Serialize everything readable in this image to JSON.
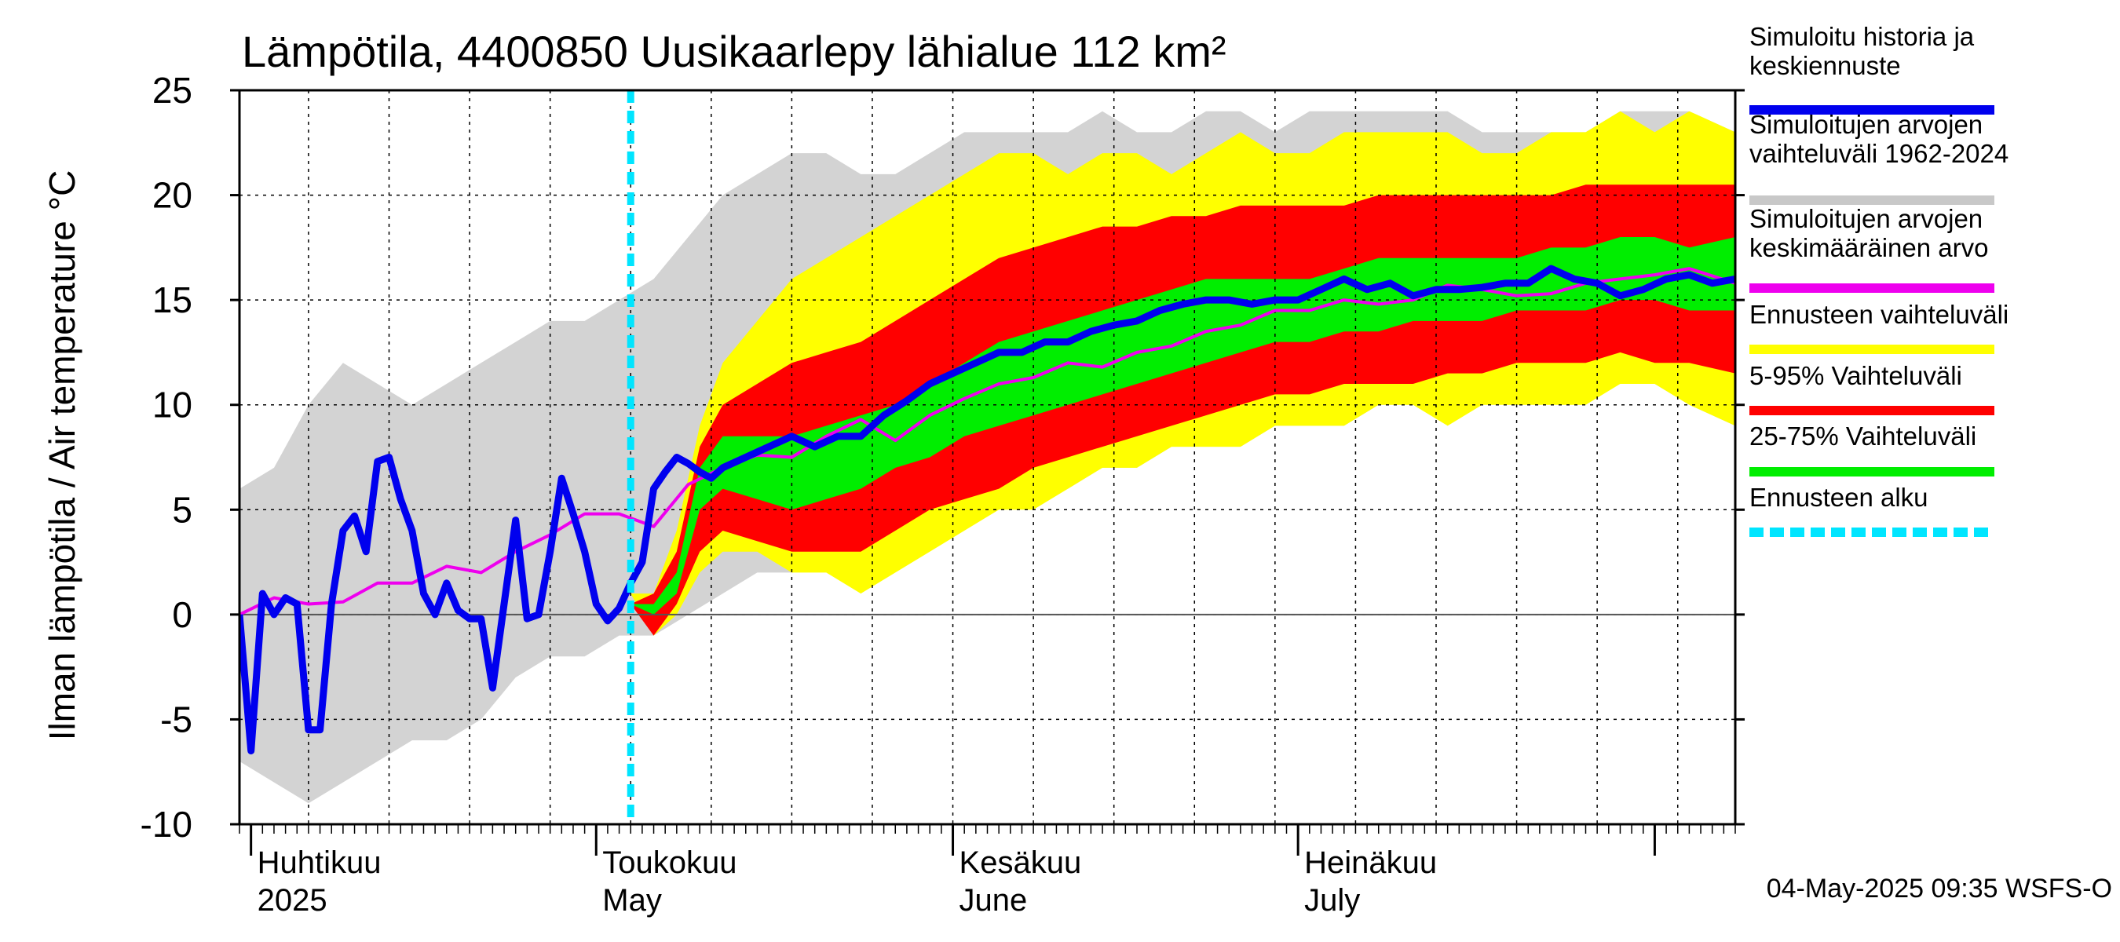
{
  "chart_data": {
    "type": "area",
    "title": "Lämpötila, 4400850 Uusikaarlepy lähialue 112 km²",
    "ylabel": "Ilman lämpötila / Air temperature   °C",
    "ylim": [
      -10,
      25
    ],
    "yticks": [
      -10,
      -5,
      0,
      5,
      10,
      15,
      20,
      25
    ],
    "x_start": "2025-03-31",
    "x_end": "2025-08-08",
    "forecast_start": "2025-05-04",
    "month_labels": [
      {
        "date": "2025-04-01",
        "line1": "Huhtikuu",
        "line2": "2025"
      },
      {
        "date": "2025-05-01",
        "line1": "Toukokuu",
        "line2": "May"
      },
      {
        "date": "2025-06-01",
        "line1": "Kesäkuu",
        "line2": "June"
      },
      {
        "date": "2025-07-01",
        "line1": "Heinäkuu",
        "line2": "July"
      }
    ],
    "footer": "04-May-2025 09:35 WSFS-O",
    "legend": [
      {
        "label": "Simuloitu historia ja\nkeskiennuste",
        "color": "#0000ee",
        "style": "solid"
      },
      {
        "label": "Simuloitujen arvojen\nvaihteluväli 1962-2024",
        "color": "#c8c8c8",
        "style": "solid"
      },
      {
        "label": "Simuloitujen arvojen\nkeskimääräinen arvo",
        "color": "#ee00ee",
        "style": "solid"
      },
      {
        "label": "Ennusteen vaihteluväli",
        "color": "#ffff00",
        "style": "solid"
      },
      {
        "label": "5-95% Vaihteluväli",
        "color": "#ff0000",
        "style": "solid"
      },
      {
        "label": "25-75% Vaihteluväli",
        "color": "#00ee00",
        "style": "solid"
      },
      {
        "label": "Ennusteen alku",
        "color": "#00e5ff",
        "style": "dashed"
      }
    ],
    "series": [
      {
        "name": "Simuloitujen arvojen vaihteluväli 1962-2024",
        "kind": "band",
        "color": "#d3d3d3",
        "x": [
          "2025-03-31",
          "2025-04-03",
          "2025-04-06",
          "2025-04-09",
          "2025-04-12",
          "2025-04-15",
          "2025-04-18",
          "2025-04-21",
          "2025-04-24",
          "2025-04-27",
          "2025-04-30",
          "2025-05-03",
          "2025-05-06",
          "2025-05-09",
          "2025-05-12",
          "2025-05-15",
          "2025-05-18",
          "2025-05-21",
          "2025-05-24",
          "2025-05-27",
          "2025-05-30",
          "2025-06-02",
          "2025-06-05",
          "2025-06-08",
          "2025-06-11",
          "2025-06-14",
          "2025-06-17",
          "2025-06-20",
          "2025-06-23",
          "2025-06-26",
          "2025-06-29",
          "2025-07-02",
          "2025-07-05",
          "2025-07-08",
          "2025-07-11",
          "2025-07-14",
          "2025-07-17",
          "2025-07-20",
          "2025-07-23",
          "2025-07-26",
          "2025-07-29",
          "2025-08-01",
          "2025-08-04",
          "2025-08-08"
        ],
        "low": [
          -7,
          -8,
          -9,
          -8,
          -7,
          -6,
          -6,
          -5,
          -3,
          -2,
          -2,
          -1,
          -1,
          0,
          1,
          2,
          2,
          3,
          3,
          4,
          4,
          5,
          5,
          6,
          6,
          7,
          7,
          8,
          8,
          8,
          9,
          9,
          9,
          10,
          10,
          10,
          10,
          11,
          11,
          11,
          11,
          11,
          10,
          9
        ],
        "high": [
          6,
          7,
          10,
          12,
          11,
          10,
          11,
          12,
          13,
          14,
          14,
          15,
          16,
          18,
          20,
          21,
          22,
          22,
          21,
          21,
          22,
          23,
          23,
          23,
          23,
          24,
          23,
          23,
          24,
          24,
          23,
          24,
          24,
          24,
          24,
          24,
          23,
          23,
          23,
          23,
          24,
          24,
          24,
          23
        ]
      },
      {
        "name": "Ennusteen vaihteluväli",
        "kind": "band",
        "color": "#ffff00",
        "x": [
          "2025-05-04",
          "2025-05-06",
          "2025-05-08",
          "2025-05-10",
          "2025-05-12",
          "2025-05-15",
          "2025-05-18",
          "2025-05-21",
          "2025-05-24",
          "2025-05-27",
          "2025-05-30",
          "2025-06-02",
          "2025-06-05",
          "2025-06-08",
          "2025-06-11",
          "2025-06-14",
          "2025-06-17",
          "2025-06-20",
          "2025-06-23",
          "2025-06-26",
          "2025-06-29",
          "2025-07-02",
          "2025-07-05",
          "2025-07-08",
          "2025-07-11",
          "2025-07-14",
          "2025-07-17",
          "2025-07-20",
          "2025-07-23",
          "2025-07-26",
          "2025-07-29",
          "2025-08-01",
          "2025-08-04",
          "2025-08-08"
        ],
        "low": [
          1,
          -1,
          0,
          2,
          3,
          3,
          2,
          2,
          1,
          2,
          3,
          4,
          5,
          5,
          6,
          7,
          7,
          8,
          8,
          8,
          9,
          9,
          9,
          10,
          10,
          9,
          10,
          10,
          10,
          10,
          11,
          11,
          10,
          9
        ],
        "high": [
          1,
          1,
          4,
          9,
          12,
          14,
          16,
          17,
          18,
          19,
          20,
          21,
          22,
          22,
          21,
          22,
          22,
          21,
          22,
          23,
          22,
          22,
          23,
          23,
          23,
          23,
          22,
          22,
          23,
          23,
          24,
          23,
          24,
          23
        ]
      },
      {
        "name": "5-95% Vaihteluväli",
        "kind": "band",
        "color": "#ff0000",
        "x": [
          "2025-05-04",
          "2025-05-06",
          "2025-05-08",
          "2025-05-10",
          "2025-05-12",
          "2025-05-15",
          "2025-05-18",
          "2025-05-21",
          "2025-05-24",
          "2025-05-27",
          "2025-05-30",
          "2025-06-02",
          "2025-06-05",
          "2025-06-08",
          "2025-06-11",
          "2025-06-14",
          "2025-06-17",
          "2025-06-20",
          "2025-06-23",
          "2025-06-26",
          "2025-06-29",
          "2025-07-02",
          "2025-07-05",
          "2025-07-08",
          "2025-07-11",
          "2025-07-14",
          "2025-07-17",
          "2025-07-20",
          "2025-07-23",
          "2025-07-26",
          "2025-07-29",
          "2025-08-01",
          "2025-08-04",
          "2025-08-08"
        ],
        "low": [
          0.5,
          -1,
          0.5,
          3,
          4,
          3.5,
          3,
          3,
          3,
          4,
          5,
          5.5,
          6,
          7,
          7.5,
          8,
          8.5,
          9,
          9.5,
          10,
          10.5,
          10.5,
          11,
          11,
          11,
          11.5,
          11.5,
          12,
          12,
          12,
          12.5,
          12,
          12,
          11.5
        ],
        "high": [
          0.5,
          1,
          3,
          8,
          10,
          11,
          12,
          12.5,
          13,
          14,
          15,
          16,
          17,
          17.5,
          18,
          18.5,
          18.5,
          19,
          19,
          19.5,
          19.5,
          19.5,
          19.5,
          20,
          20,
          20,
          20,
          20,
          20,
          20.5,
          20.5,
          20.5,
          20.5,
          20.5
        ]
      },
      {
        "name": "25-75% Vaihteluväli",
        "kind": "band",
        "color": "#00ee00",
        "x": [
          "2025-05-04",
          "2025-05-06",
          "2025-05-08",
          "2025-05-10",
          "2025-05-12",
          "2025-05-15",
          "2025-05-18",
          "2025-05-21",
          "2025-05-24",
          "2025-05-27",
          "2025-05-30",
          "2025-06-02",
          "2025-06-05",
          "2025-06-08",
          "2025-06-11",
          "2025-06-14",
          "2025-06-17",
          "2025-06-20",
          "2025-06-23",
          "2025-06-26",
          "2025-06-29",
          "2025-07-02",
          "2025-07-05",
          "2025-07-08",
          "2025-07-11",
          "2025-07-14",
          "2025-07-17",
          "2025-07-20",
          "2025-07-23",
          "2025-07-26",
          "2025-07-29",
          "2025-08-01",
          "2025-08-04",
          "2025-08-08"
        ],
        "low": [
          0.5,
          0,
          1,
          5,
          6,
          5.5,
          5,
          5.5,
          6,
          7,
          7.5,
          8.5,
          9,
          9.5,
          10,
          10.5,
          11,
          11.5,
          12,
          12.5,
          13,
          13,
          13.5,
          13.5,
          14,
          14,
          14,
          14.5,
          14.5,
          14.5,
          15,
          15,
          14.5,
          14.5
        ],
        "high": [
          0.5,
          0.5,
          2,
          7,
          8.5,
          8.5,
          8.5,
          9,
          9.5,
          10,
          11,
          12,
          13,
          13.5,
          14,
          14.5,
          15,
          15.5,
          16,
          16,
          16,
          16,
          16.5,
          17,
          17,
          17,
          17,
          17,
          17.5,
          17.5,
          18,
          18,
          17.5,
          18
        ]
      },
      {
        "name": "Simuloitujen arvojen keskimääräinen arvo",
        "kind": "line",
        "color": "#ee00ee",
        "x": [
          "2025-03-31",
          "2025-04-03",
          "2025-04-06",
          "2025-04-09",
          "2025-04-12",
          "2025-04-15",
          "2025-04-18",
          "2025-04-21",
          "2025-04-24",
          "2025-04-27",
          "2025-04-30",
          "2025-05-03",
          "2025-05-06",
          "2025-05-09",
          "2025-05-12",
          "2025-05-15",
          "2025-05-18",
          "2025-05-21",
          "2025-05-24",
          "2025-05-27",
          "2025-05-30",
          "2025-06-02",
          "2025-06-05",
          "2025-06-08",
          "2025-06-11",
          "2025-06-14",
          "2025-06-17",
          "2025-06-20",
          "2025-06-23",
          "2025-06-26",
          "2025-06-29",
          "2025-07-02",
          "2025-07-05",
          "2025-07-08",
          "2025-07-11",
          "2025-07-14",
          "2025-07-17",
          "2025-07-20",
          "2025-07-23",
          "2025-07-26",
          "2025-07-29",
          "2025-08-01",
          "2025-08-04",
          "2025-08-08"
        ],
        "y": [
          0,
          0.8,
          0.5,
          0.6,
          1.5,
          1.5,
          2.3,
          2,
          3,
          3.8,
          4.8,
          4.8,
          4.2,
          6.2,
          7,
          7.6,
          7.5,
          8.5,
          9.3,
          8.3,
          9.5,
          10.3,
          11,
          11.3,
          12,
          11.8,
          12.5,
          12.8,
          13.5,
          13.8,
          14.5,
          14.5,
          15,
          14.8,
          15,
          15.7,
          15.5,
          15.2,
          15.3,
          15.8,
          16,
          16.2,
          16.5,
          15.8
        ]
      },
      {
        "name": "Simuloitu historia ja keskiennuste",
        "kind": "line",
        "color": "#0000ee",
        "x": [
          "2025-03-31",
          "2025-04-01",
          "2025-04-02",
          "2025-04-03",
          "2025-04-04",
          "2025-04-05",
          "2025-04-06",
          "2025-04-07",
          "2025-04-08",
          "2025-04-09",
          "2025-04-10",
          "2025-04-11",
          "2025-04-12",
          "2025-04-13",
          "2025-04-14",
          "2025-04-15",
          "2025-04-16",
          "2025-04-17",
          "2025-04-18",
          "2025-04-19",
          "2025-04-20",
          "2025-04-21",
          "2025-04-22",
          "2025-04-23",
          "2025-04-24",
          "2025-04-25",
          "2025-04-26",
          "2025-04-27",
          "2025-04-28",
          "2025-04-29",
          "2025-04-30",
          "2025-05-01",
          "2025-05-02",
          "2025-05-03",
          "2025-05-04",
          "2025-05-05",
          "2025-05-06",
          "2025-05-07",
          "2025-05-08",
          "2025-05-09",
          "2025-05-10",
          "2025-05-11",
          "2025-05-12",
          "2025-05-14",
          "2025-05-16",
          "2025-05-18",
          "2025-05-20",
          "2025-05-22",
          "2025-05-24",
          "2025-05-26",
          "2025-05-28",
          "2025-05-30",
          "2025-06-01",
          "2025-06-03",
          "2025-06-05",
          "2025-06-07",
          "2025-06-09",
          "2025-06-11",
          "2025-06-13",
          "2025-06-15",
          "2025-06-17",
          "2025-06-19",
          "2025-06-21",
          "2025-06-23",
          "2025-06-25",
          "2025-06-27",
          "2025-06-29",
          "2025-07-01",
          "2025-07-03",
          "2025-07-05",
          "2025-07-07",
          "2025-07-09",
          "2025-07-11",
          "2025-07-13",
          "2025-07-15",
          "2025-07-17",
          "2025-07-19",
          "2025-07-21",
          "2025-07-23",
          "2025-07-25",
          "2025-07-27",
          "2025-07-29",
          "2025-07-31",
          "2025-08-02",
          "2025-08-04",
          "2025-08-06",
          "2025-08-08"
        ],
        "y": [
          0,
          -6.5,
          1,
          0,
          0.8,
          0.5,
          -5.5,
          -5.5,
          0.5,
          4,
          4.7,
          3,
          7.3,
          7.5,
          5.5,
          4,
          1,
          0,
          1.5,
          0.2,
          -0.2,
          -0.2,
          -3.5,
          0.5,
          4.5,
          -0.2,
          0,
          3,
          6.5,
          4.8,
          3,
          0.5,
          -0.3,
          0.3,
          1.5,
          2.5,
          6,
          6.8,
          7.5,
          7.2,
          6.8,
          6.5,
          7,
          7.5,
          8,
          8.5,
          8,
          8.5,
          8.5,
          9.5,
          10.2,
          11,
          11.5,
          12,
          12.5,
          12.5,
          13,
          13,
          13.5,
          13.8,
          14,
          14.5,
          14.8,
          15,
          15,
          14.8,
          15,
          15,
          15.5,
          16,
          15.5,
          15.8,
          15.2,
          15.5,
          15.5,
          15.6,
          15.8,
          15.8,
          16.5,
          16,
          15.8,
          15.2,
          15.5,
          16,
          16.2,
          15.8,
          16
        ]
      }
    ]
  },
  "legend_color_forecast_start": "#00e5ff"
}
